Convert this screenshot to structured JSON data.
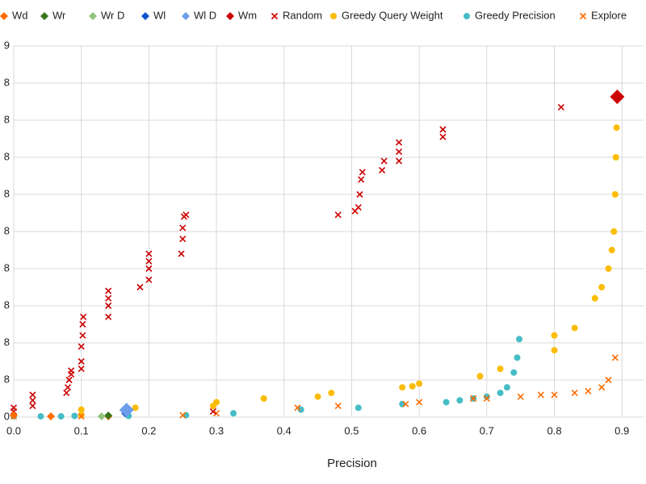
{
  "chart_data": {
    "type": "scatter",
    "x_label": "Precision",
    "xlim": [
      0,
      0.932
    ],
    "ylim": [
      0,
      1000000000
    ],
    "xticks": [
      {
        "value": 0,
        "label": "0.0"
      },
      0.1,
      0.2,
      0.3,
      0.4,
      0.5,
      0.6,
      0.7,
      0.8,
      0.9
    ],
    "yticks": [
      0,
      {
        "value": 100000000,
        "label": "8"
      },
      {
        "value": 200000000,
        "label": "8"
      },
      {
        "value": 300000000,
        "label": "8"
      },
      {
        "value": 400000000,
        "label": "8"
      },
      {
        "value": 500000000,
        "label": "8"
      },
      {
        "value": 600000000,
        "label": "8"
      },
      {
        "value": 700000000,
        "label": "8"
      },
      {
        "value": 800000000,
        "label": "8"
      },
      {
        "value": 900000000,
        "label": "8"
      },
      {
        "value": 1000000000,
        "label": "9"
      }
    ],
    "grid": true,
    "legend": "top",
    "series": [
      {
        "name": "Wd",
        "color": "#ff6d01",
        "marker": "diamond",
        "x": [
          0.0,
          0.055,
          0.14
        ],
        "values": [
          5000000,
          2000000,
          2000000
        ]
      },
      {
        "name": "Wr",
        "color": "#38761d",
        "marker": "diamond",
        "x": [
          0.14
        ],
        "values": [
          4000000
        ]
      },
      {
        "name": "Wr D",
        "color": "#93c47d",
        "marker": "diamond",
        "x": [
          0.13
        ],
        "values": [
          2000000
        ]
      },
      {
        "name": "Wl",
        "color": "#1155cc",
        "marker": "diamond",
        "x": [
          0.165
        ],
        "values": [
          10000000
        ]
      },
      {
        "name": "Wl D",
        "color": "#6d9eeb",
        "marker": "diamond",
        "x": [
          0.167
        ],
        "values": [
          19000000
        ]
      },
      {
        "name": "Wm",
        "color": "#cc0000",
        "marker": "diamond",
        "x": [
          0.893
        ],
        "values": [
          863000000
        ]
      },
      {
        "name": "Random",
        "color": "#cc0000",
        "marker": "x",
        "x": [
          0.0,
          0.0,
          0.028,
          0.028,
          0.028,
          0.078,
          0.08,
          0.082,
          0.085,
          0.085,
          0.1,
          0.1,
          0.1,
          0.102,
          0.102,
          0.103,
          0.14,
          0.14,
          0.14,
          0.14,
          0.187,
          0.2,
          0.2,
          0.2,
          0.2,
          0.248,
          0.25,
          0.25,
          0.252,
          0.255,
          0.295,
          0.48,
          0.505,
          0.51,
          0.512,
          0.514,
          0.516,
          0.545,
          0.548,
          0.57,
          0.57,
          0.57,
          0.635,
          0.635,
          0.81,
          0.892
        ],
        "values": [
          15000000,
          25000000,
          30000000,
          45000000,
          60000000,
          65000000,
          80000000,
          100000000,
          115000000,
          125000000,
          130000000,
          150000000,
          190000000,
          220000000,
          250000000,
          270000000,
          270000000,
          300000000,
          320000000,
          340000000,
          350000000,
          370000000,
          400000000,
          420000000,
          440000000,
          440000000,
          480000000,
          510000000,
          540000000,
          545000000,
          15000000,
          545000000,
          555000000,
          565000000,
          600000000,
          640000000,
          660000000,
          665000000,
          690000000,
          690000000,
          715000000,
          740000000,
          755000000,
          775000000,
          835000000,
          865000000
        ]
      },
      {
        "name": "Greedy Query Weight",
        "color": "#fbbc04",
        "marker": "circle",
        "x": [
          0.1,
          0.1,
          0.18,
          0.295,
          0.3,
          0.37,
          0.45,
          0.47,
          0.575,
          0.59,
          0.6,
          0.69,
          0.72,
          0.8,
          0.8,
          0.83,
          0.86,
          0.87,
          0.88,
          0.885,
          0.888,
          0.89,
          0.891,
          0.892,
          0.893
        ],
        "values": [
          5000000,
          20000000,
          25000000,
          30000000,
          40000000,
          50000000,
          55000000,
          65000000,
          80000000,
          83000000,
          90000000,
          110000000,
          130000000,
          180000000,
          220000000,
          240000000,
          320000000,
          350000000,
          400000000,
          450000000,
          500000000,
          600000000,
          700000000,
          780000000,
          860000000
        ]
      },
      {
        "name": "Greedy Precision",
        "color": "#46bdc6",
        "marker": "circle",
        "x": [
          0.0,
          0.04,
          0.07,
          0.09,
          0.17,
          0.255,
          0.325,
          0.425,
          0.51,
          0.575,
          0.64,
          0.66,
          0.68,
          0.7,
          0.72,
          0.73,
          0.74,
          0.745,
          0.748
        ],
        "values": [
          2000000,
          2000000,
          2000000,
          3000000,
          3000000,
          5000000,
          10000000,
          20000000,
          25000000,
          35000000,
          40000000,
          45000000,
          50000000,
          55000000,
          65000000,
          80000000,
          120000000,
          160000000,
          210000000
        ]
      },
      {
        "name": "Explore",
        "color": "#ff6d01",
        "marker": "x",
        "x": [
          0.0,
          0.1,
          0.25,
          0.3,
          0.42,
          0.48,
          0.58,
          0.6,
          0.68,
          0.7,
          0.75,
          0.78,
          0.8,
          0.83,
          0.85,
          0.87,
          0.88,
          0.89
        ],
        "values": [
          2000000,
          2000000,
          5000000,
          10000000,
          25000000,
          30000000,
          35000000,
          40000000,
          50000000,
          50000000,
          55000000,
          60000000,
          60000000,
          65000000,
          70000000,
          80000000,
          100000000,
          160000000
        ]
      }
    ]
  }
}
